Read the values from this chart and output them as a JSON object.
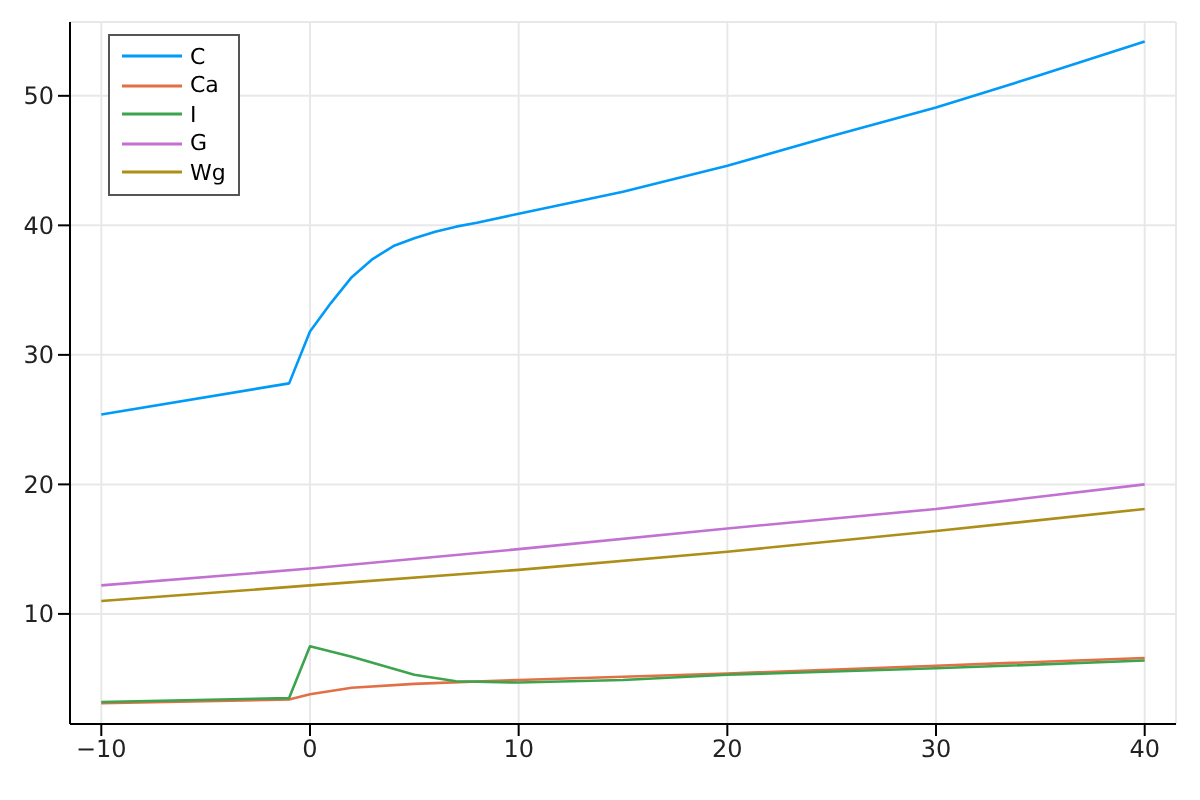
{
  "chart_data": {
    "type": "line",
    "xlim": [
      -11.5,
      41.5
    ],
    "ylim": [
      1.5,
      55.7
    ],
    "xticks": [
      -10,
      0,
      10,
      20,
      30,
      40
    ],
    "yticks": [
      10,
      20,
      30,
      40,
      50
    ],
    "grid": true,
    "legend": "top left",
    "marker": "none",
    "line_style": "solid",
    "series": [
      {
        "name": "C",
        "color": "#009af9",
        "x": [
          -10,
          -1,
          0,
          1,
          2,
          3,
          4,
          5,
          6,
          7,
          8,
          10,
          15,
          20,
          25,
          30,
          35,
          40
        ],
        "values": [
          25.4,
          27.8,
          31.8,
          34,
          36,
          37.4,
          38.4,
          39,
          39.5,
          39.9,
          40.2,
          40.9,
          42.6,
          44.6,
          46.9,
          49.1,
          51.6,
          54.2
        ]
      },
      {
        "name": "Ca",
        "color": "#e26f46",
        "x": [
          -10,
          -1,
          0,
          2,
          5,
          10,
          20,
          30,
          40
        ],
        "values": [
          3.1,
          3.4,
          3.8,
          4.3,
          4.6,
          4.9,
          5.4,
          6,
          6.6
        ]
      },
      {
        "name": "I",
        "color": "#3da44d",
        "x": [
          -10,
          -1,
          0,
          2,
          5,
          7,
          10,
          15,
          20,
          30,
          40
        ],
        "values": [
          3.2,
          3.5,
          7.5,
          6.7,
          5.3,
          4.8,
          4.7,
          4.9,
          5.3,
          5.8,
          6.4
        ]
      },
      {
        "name": "G",
        "color": "#c271d2",
        "x": [
          -10,
          0,
          10,
          20,
          30,
          40
        ],
        "values": [
          12.2,
          13.5,
          15,
          16.6,
          18.1,
          20
        ]
      },
      {
        "name": "Wg",
        "color": "#ac8e18",
        "x": [
          -10,
          0,
          10,
          20,
          30,
          40
        ],
        "values": [
          11,
          12.2,
          13.4,
          14.8,
          16.4,
          18.1
        ]
      }
    ]
  }
}
